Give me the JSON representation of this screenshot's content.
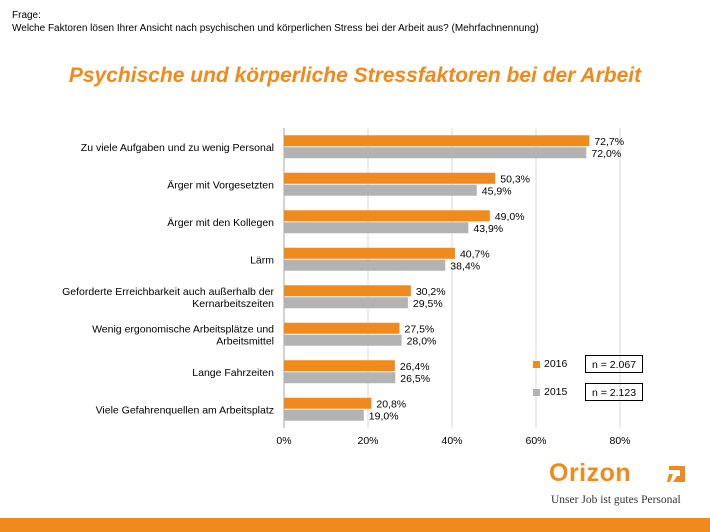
{
  "header": {
    "question_label": "Frage:",
    "question_text": "Welche Faktoren lösen Ihrer Ansicht nach psychischen und körperlichen Stress bei der Arbeit aus? (Mehrfachnennung)"
  },
  "chart_data": {
    "type": "bar",
    "orientation": "horizontal",
    "title": "Psychische und körperliche Stressfaktoren bei der Arbeit",
    "xlabel": "",
    "ylabel": "",
    "xlim": [
      0,
      80
    ],
    "ticks": [
      "0%",
      "20%",
      "40%",
      "60%",
      "80%"
    ],
    "tick_values": [
      0,
      20,
      40,
      60,
      80
    ],
    "grid": true,
    "legend_position": "bottom-right",
    "categories": [
      "Zu viele Aufgaben und zu wenig Personal",
      "Ärger mit Vorgesetzten",
      "Ärger mit den Kollegen",
      "Lärm",
      "Geforderte Erreichbarkeit auch außerhalb der Kernarbeitszeiten",
      "Wenig ergonomische Arbeitsplätze und Arbeitsmittel",
      "Lange Fahrzeiten",
      "Viele Gefahrenquellen am Arbeitsplatz"
    ],
    "category_lines": [
      [
        "Zu viele Aufgaben und zu wenig Personal"
      ],
      [
        "Ärger mit Vorgesetzten"
      ],
      [
        "Ärger mit den Kollegen"
      ],
      [
        "Lärm"
      ],
      [
        "Geforderte Erreichbarkeit auch außerhalb der",
        "Kernarbeitszeiten"
      ],
      [
        "Wenig ergonomische Arbeitsplätze und",
        "Arbeitsmittel"
      ],
      [
        "Lange Fahrzeiten"
      ],
      [
        "Viele Gefahrenquellen am Arbeitsplatz"
      ]
    ],
    "series": [
      {
        "name": "2016",
        "color": "#f08a1c",
        "values": [
          72.7,
          50.3,
          49.0,
          40.7,
          30.2,
          27.5,
          26.4,
          20.8
        ],
        "labels": [
          "72,7%",
          "50,3%",
          "49,0%",
          "40,7%",
          "30,2%",
          "27,5%",
          "26,4%",
          "20,8%"
        ],
        "n_label": "n = 2.067"
      },
      {
        "name": "2015",
        "color": "#b3b3b3",
        "values": [
          72.0,
          45.9,
          43.9,
          38.4,
          29.5,
          28.0,
          26.5,
          19.0
        ],
        "labels": [
          "72,0%",
          "45,9%",
          "43,9%",
          "38,4%",
          "29,5%",
          "28,0%",
          "26,5%",
          "19,0%"
        ],
        "n_label": "n = 2.123"
      }
    ]
  },
  "brand": {
    "name": "Orizon",
    "slogan": "Unser Job ist gutes Personal",
    "color": "#f08a1c"
  }
}
